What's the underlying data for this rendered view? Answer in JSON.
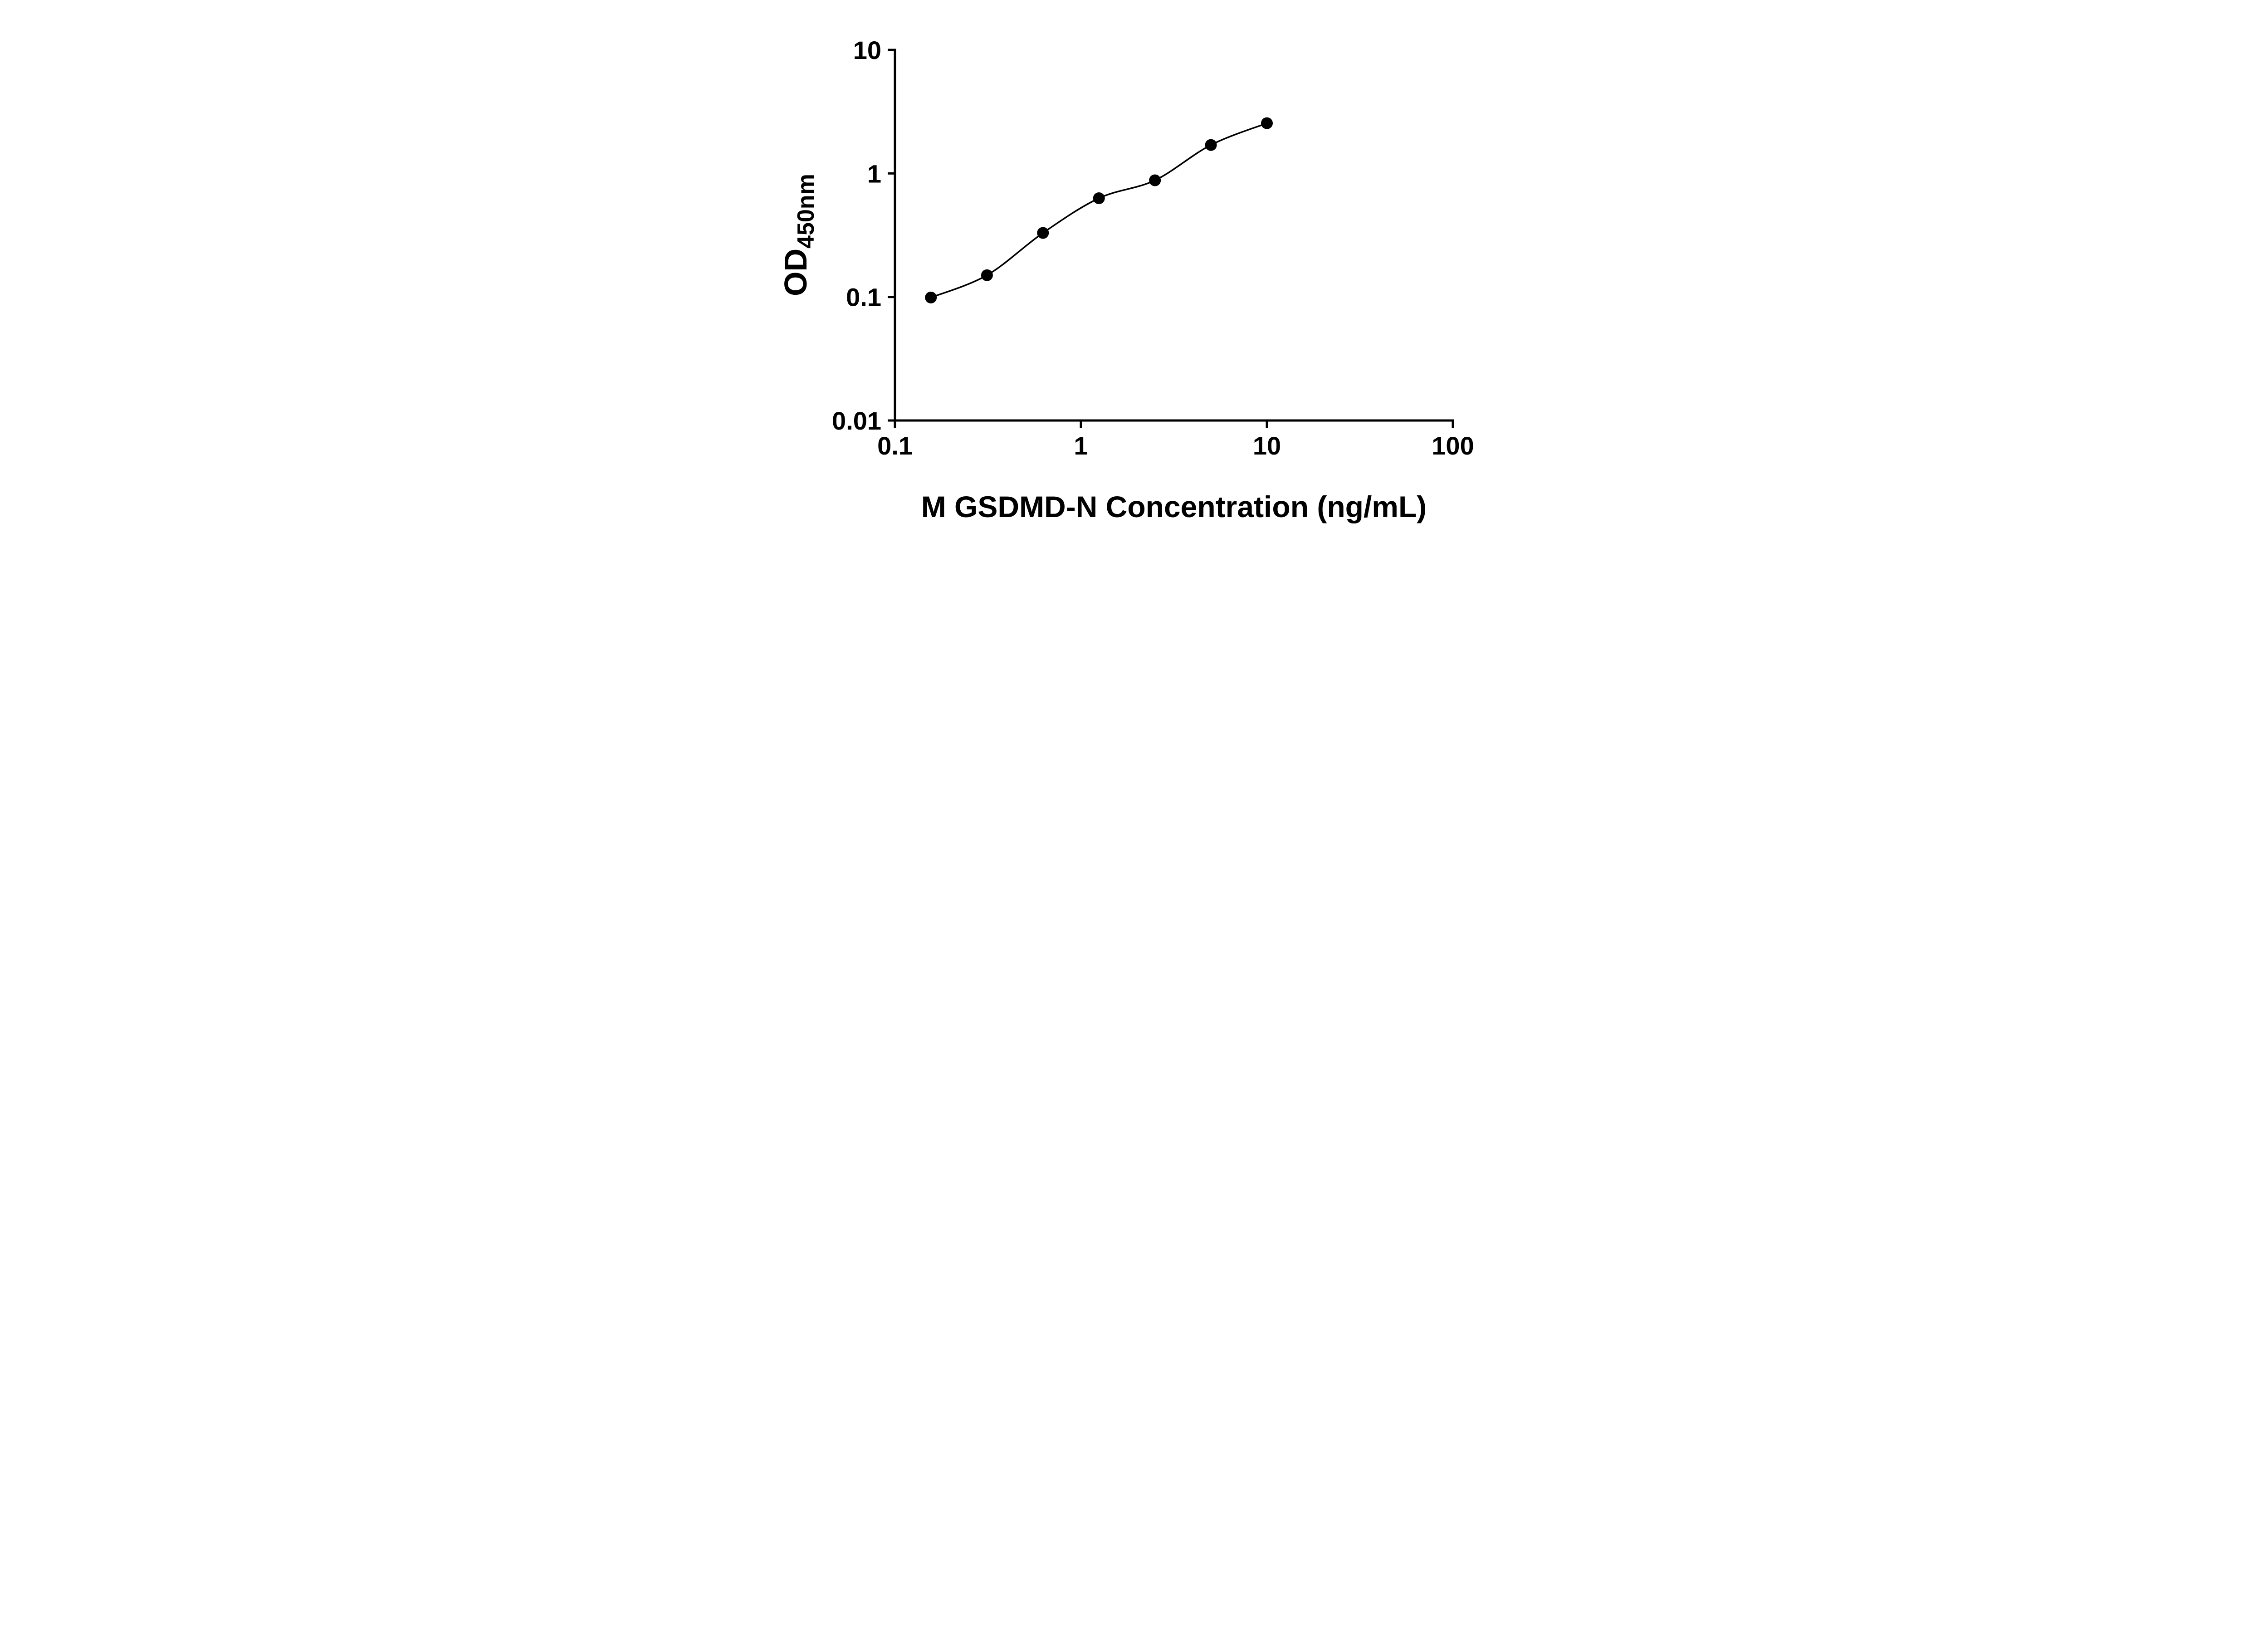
{
  "figure": {
    "background_color": "#ffffff",
    "axis_color": "#000000",
    "text_color": "#000000",
    "marker_color": "#000000",
    "line_color": "#000000"
  },
  "chart_data": {
    "type": "scatter",
    "curve": "smooth fitted standard curve through points",
    "x": [
      0.156,
      0.3125,
      0.625,
      1.25,
      2.5,
      5,
      10
    ],
    "y": [
      0.099,
      0.15,
      0.33,
      0.63,
      0.88,
      1.7,
      2.55
    ],
    "xlabel": "M GSDMD-N Concentration (ng/mL)",
    "ylabel_main": "OD",
    "ylabel_sub": "450nm",
    "x_scale": "log",
    "y_scale": "log",
    "xlim": [
      0.1,
      100
    ],
    "ylim": [
      0.01,
      10
    ],
    "x_ticks": [
      0.1,
      1,
      10,
      100
    ],
    "x_tick_labels": [
      "0.1",
      "1",
      "10",
      "100"
    ],
    "y_ticks": [
      0.01,
      0.1,
      1,
      10
    ],
    "y_tick_labels": [
      "0.01",
      "0.1",
      "1",
      "10"
    ],
    "grid": false,
    "legend": false
  }
}
